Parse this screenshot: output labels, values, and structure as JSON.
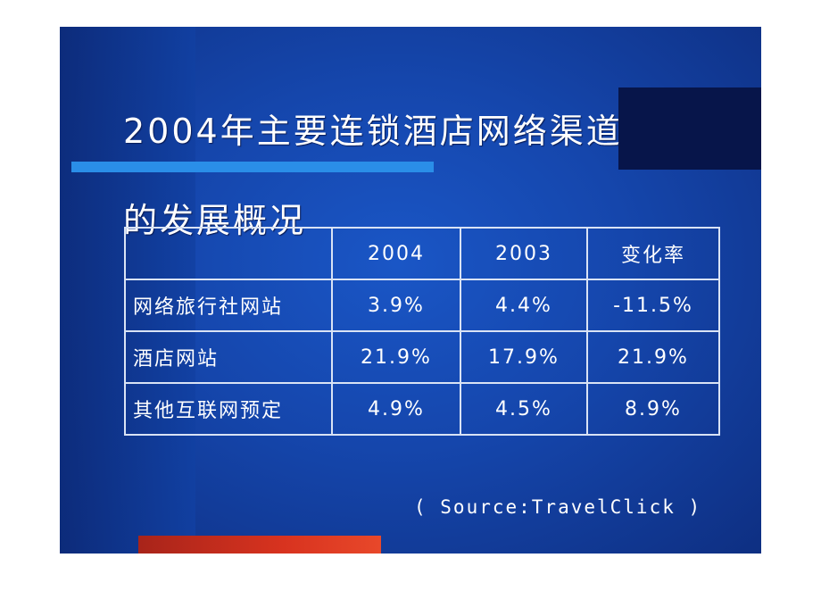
{
  "slide": {
    "title_line1": "2004年主要连锁酒店网络渠道",
    "title_line2": "的发展概况",
    "source": "( Source:TravelClick )"
  },
  "table": {
    "header": [
      "",
      "2004",
      "2003",
      "变化率"
    ],
    "rows": [
      [
        "网络旅行社网站",
        "3.9%",
        "4.4%",
        "-11.5%"
      ],
      [
        "酒店网站",
        "21.9%",
        "17.9%",
        "21.9%"
      ],
      [
        "其他互联网预定",
        "4.9%",
        "4.5%",
        "8.9%"
      ]
    ]
  },
  "colors": {
    "background": "#1546ac",
    "accent_line": "#2a8ee8",
    "bottom_bar": "#d8331f",
    "text": "#ffffff"
  }
}
